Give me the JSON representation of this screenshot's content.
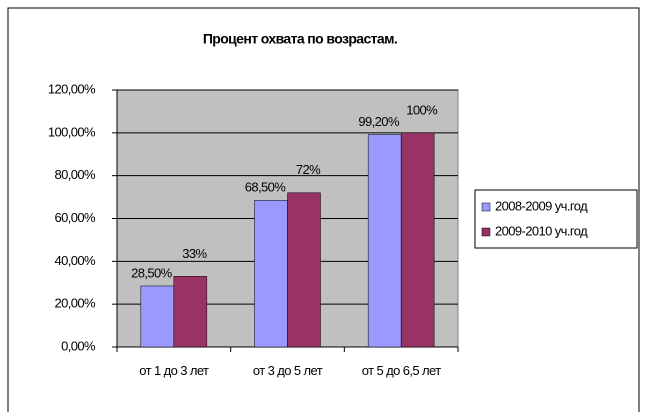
{
  "chart_data": {
    "type": "bar",
    "title": "Процент охвата по возрастам.",
    "categories": [
      "от 1 до 3 лет",
      "от 3 до 5 лет",
      "от 5 до 6,5 лет"
    ],
    "series": [
      {
        "name": "2008-2009 уч.год",
        "color": "#9999ff",
        "values": [
          28.5,
          68.5,
          99.2
        ],
        "value_labels": [
          "28,50%",
          "68,50%",
          "99,20%"
        ]
      },
      {
        "name": "2009-2010 уч.год",
        "color": "#993366",
        "values": [
          33,
          72,
          100
        ],
        "value_labels": [
          "33%",
          "72%",
          "100%"
        ]
      }
    ],
    "ylim": [
      0,
      120
    ],
    "yticks": [
      {
        "value": 0,
        "label": "0,00%"
      },
      {
        "value": 20,
        "label": "20,00%"
      },
      {
        "value": 40,
        "label": "40,00%"
      },
      {
        "value": 60,
        "label": "60,00%"
      },
      {
        "value": 80,
        "label": "80,00%"
      },
      {
        "value": 100,
        "label": "100,00%"
      },
      {
        "value": 120,
        "label": "120,00%"
      }
    ],
    "grid": true,
    "legend": "right"
  }
}
